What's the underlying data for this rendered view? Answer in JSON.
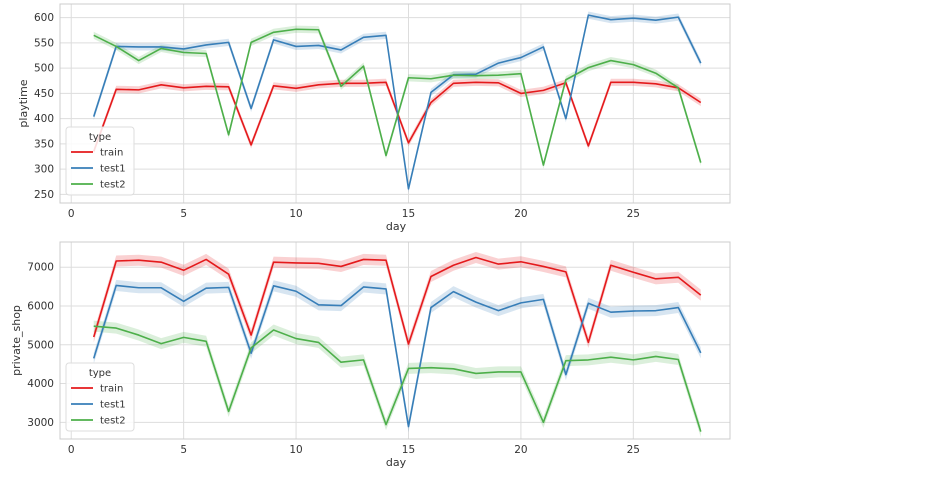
{
  "chart_data": [
    {
      "type": "line",
      "title": "",
      "xlabel": "day",
      "ylabel": "playtime",
      "xlim": [
        -0.5,
        29.3
      ],
      "ylim": [
        233,
        627
      ],
      "xticks": [
        0,
        5,
        10,
        15,
        20,
        25
      ],
      "yticks": [
        250,
        300,
        350,
        400,
        450,
        500,
        550,
        600
      ],
      "grid": true,
      "legend": {
        "title": "type",
        "placement": "lower-left"
      },
      "x": [
        1,
        2,
        3,
        4,
        5,
        6,
        7,
        8,
        9,
        10,
        11,
        12,
        13,
        14,
        15,
        16,
        17,
        18,
        19,
        20,
        21,
        22,
        23,
        24,
        25,
        26,
        27,
        28
      ],
      "series": [
        {
          "name": "train",
          "color": "#e41a1c",
          "values": [
            335,
            458,
            457,
            467,
            461,
            464,
            463,
            348,
            465,
            460,
            467,
            470,
            470,
            472,
            352,
            432,
            470,
            472,
            471,
            450,
            456,
            471,
            346,
            472,
            472,
            469,
            461,
            432
          ]
        },
        {
          "name": "test1",
          "color": "#377eb8",
          "values": [
            404,
            543,
            542,
            542,
            538,
            546,
            551,
            420,
            556,
            543,
            545,
            536,
            561,
            565,
            261,
            452,
            487,
            488,
            510,
            521,
            542,
            400,
            605,
            596,
            599,
            595,
            601,
            510
          ]
        },
        {
          "name": "test2",
          "color": "#4daf4a",
          "values": [
            565,
            543,
            515,
            539,
            531,
            529,
            368,
            551,
            571,
            577,
            576,
            464,
            504,
            327,
            481,
            479,
            486,
            485,
            486,
            489,
            308,
            477,
            501,
            515,
            507,
            490,
            461,
            313
          ]
        }
      ]
    },
    {
      "type": "line",
      "title": "",
      "xlabel": "day",
      "ylabel": "private_shop",
      "xlim": [
        -0.5,
        29.3
      ],
      "ylim": [
        2570,
        7650
      ],
      "xticks": [
        0,
        5,
        10,
        15,
        20,
        25
      ],
      "yticks": [
        3000,
        4000,
        5000,
        6000,
        7000
      ],
      "grid": true,
      "legend": {
        "title": "type",
        "placement": "lower-left"
      },
      "x": [
        1,
        2,
        3,
        4,
        5,
        6,
        7,
        8,
        9,
        10,
        11,
        12,
        13,
        14,
        15,
        16,
        17,
        18,
        19,
        20,
        21,
        22,
        23,
        24,
        25,
        26,
        27,
        28
      ],
      "series": [
        {
          "name": "train",
          "color": "#e41a1c",
          "values": [
            5200,
            7160,
            7180,
            7130,
            6920,
            7200,
            6820,
            5250,
            7130,
            7110,
            7100,
            7020,
            7200,
            7180,
            5020,
            6760,
            7050,
            7250,
            7080,
            7140,
            7020,
            6880,
            5060,
            7050,
            6870,
            6700,
            6740,
            6280
          ]
        },
        {
          "name": "test1",
          "color": "#377eb8",
          "values": [
            4650,
            6530,
            6470,
            6470,
            6120,
            6460,
            6480,
            4780,
            6520,
            6380,
            6030,
            6010,
            6490,
            6440,
            2890,
            5960,
            6370,
            6100,
            5880,
            6080,
            6170,
            4230,
            6070,
            5840,
            5870,
            5880,
            5960,
            4790
          ]
        },
        {
          "name": "test2",
          "color": "#4daf4a",
          "values": [
            5480,
            5430,
            5250,
            5030,
            5190,
            5090,
            3280,
            4920,
            5380,
            5160,
            5060,
            4550,
            4610,
            2940,
            4390,
            4410,
            4380,
            4260,
            4300,
            4300,
            3000,
            4590,
            4610,
            4680,
            4610,
            4700,
            4620,
            2760
          ]
        }
      ]
    }
  ]
}
